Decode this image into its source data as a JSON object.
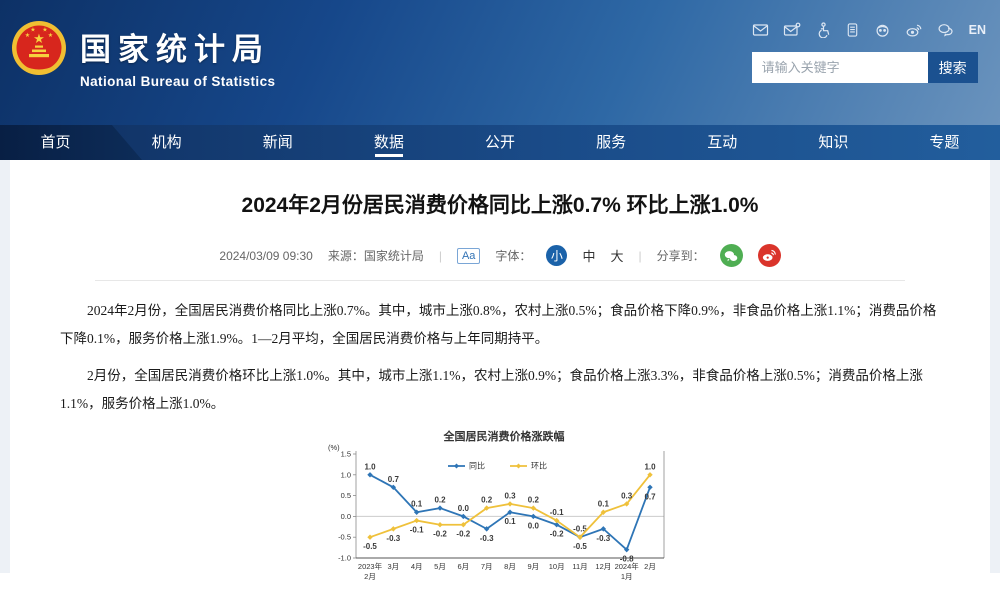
{
  "banner": {
    "site_name": "国家统计局",
    "site_name_en": "National Bureau of Statistics",
    "icons": [
      "mail-icon",
      "mail-subscribe-icon",
      "accessibility-icon",
      "mobile-client-icon",
      "robot-assistant-icon",
      "weibo-icon",
      "wechat-icon"
    ],
    "lang_label": "EN",
    "search": {
      "placeholder": "请输入关键字",
      "button_label": "搜索"
    }
  },
  "nav": {
    "items": [
      "首页",
      "机构",
      "新闻",
      "数据",
      "公开",
      "服务",
      "互动",
      "知识",
      "专题"
    ],
    "active": "数据"
  },
  "article": {
    "title": "2024年2月份居民消费价格同比上涨0.7% 环比上涨1.0%",
    "meta": {
      "datetime": "2024/03/09 09:30",
      "source": "来源：国家统计局",
      "sep": "|",
      "font_icon": "Aa",
      "font_label": "字体：",
      "font_sizes": [
        "小",
        "中",
        "大"
      ],
      "share_label": "分享到："
    },
    "paragraphs": [
      "2024年2月份，全国居民消费价格同比上涨0.7%。其中，城市上涨0.8%，农村上涨0.5%；食品价格下降0.9%，非食品价格上涨1.1%；消费品价格下降0.1%，服务价格上涨1.9%。1—2月平均，全国居民消费价格与上年同期持平。",
      "2月份，全国居民消费价格环比上涨1.0%。其中，城市上涨1.1%，农村上涨0.9%；食品价格上涨3.3%，非食品价格上涨0.5%；消费品价格上涨1.1%，服务价格上涨1.0%。"
    ]
  },
  "chart_data": {
    "type": "line",
    "title": "全国居民消费价格涨跌幅",
    "unit_label": "(%)",
    "categories": [
      [
        "2023年",
        "2月"
      ],
      "3月",
      "4月",
      "5月",
      "6月",
      "7月",
      "8月",
      "9月",
      "10月",
      "11月",
      "12月",
      [
        "2024年",
        "1月"
      ],
      "2月"
    ],
    "series": [
      {
        "name": "同比",
        "color": "#2E75B6",
        "values": [
          1.0,
          0.7,
          0.1,
          0.2,
          0.0,
          -0.3,
          0.1,
          0.0,
          -0.2,
          -0.5,
          -0.3,
          -0.8,
          0.7
        ]
      },
      {
        "name": "环比",
        "color": "#EFC13B",
        "values": [
          -0.5,
          -0.3,
          -0.1,
          -0.2,
          -0.2,
          0.2,
          0.3,
          0.2,
          -0.1,
          -0.5,
          0.1,
          0.3,
          1.0
        ]
      }
    ],
    "ylim": [
      -1.0,
      1.5
    ],
    "yticks": [
      1.5,
      1.0,
      0.5,
      0.0,
      -0.5,
      -1.0
    ],
    "legend_position": "top-center",
    "grid": "zero-line-only"
  },
  "colors": {
    "search_button": "#1b5190",
    "font_size_active": "#1b62a9",
    "wechat_green": "#4fae53",
    "weibo_red": "#da342b"
  }
}
